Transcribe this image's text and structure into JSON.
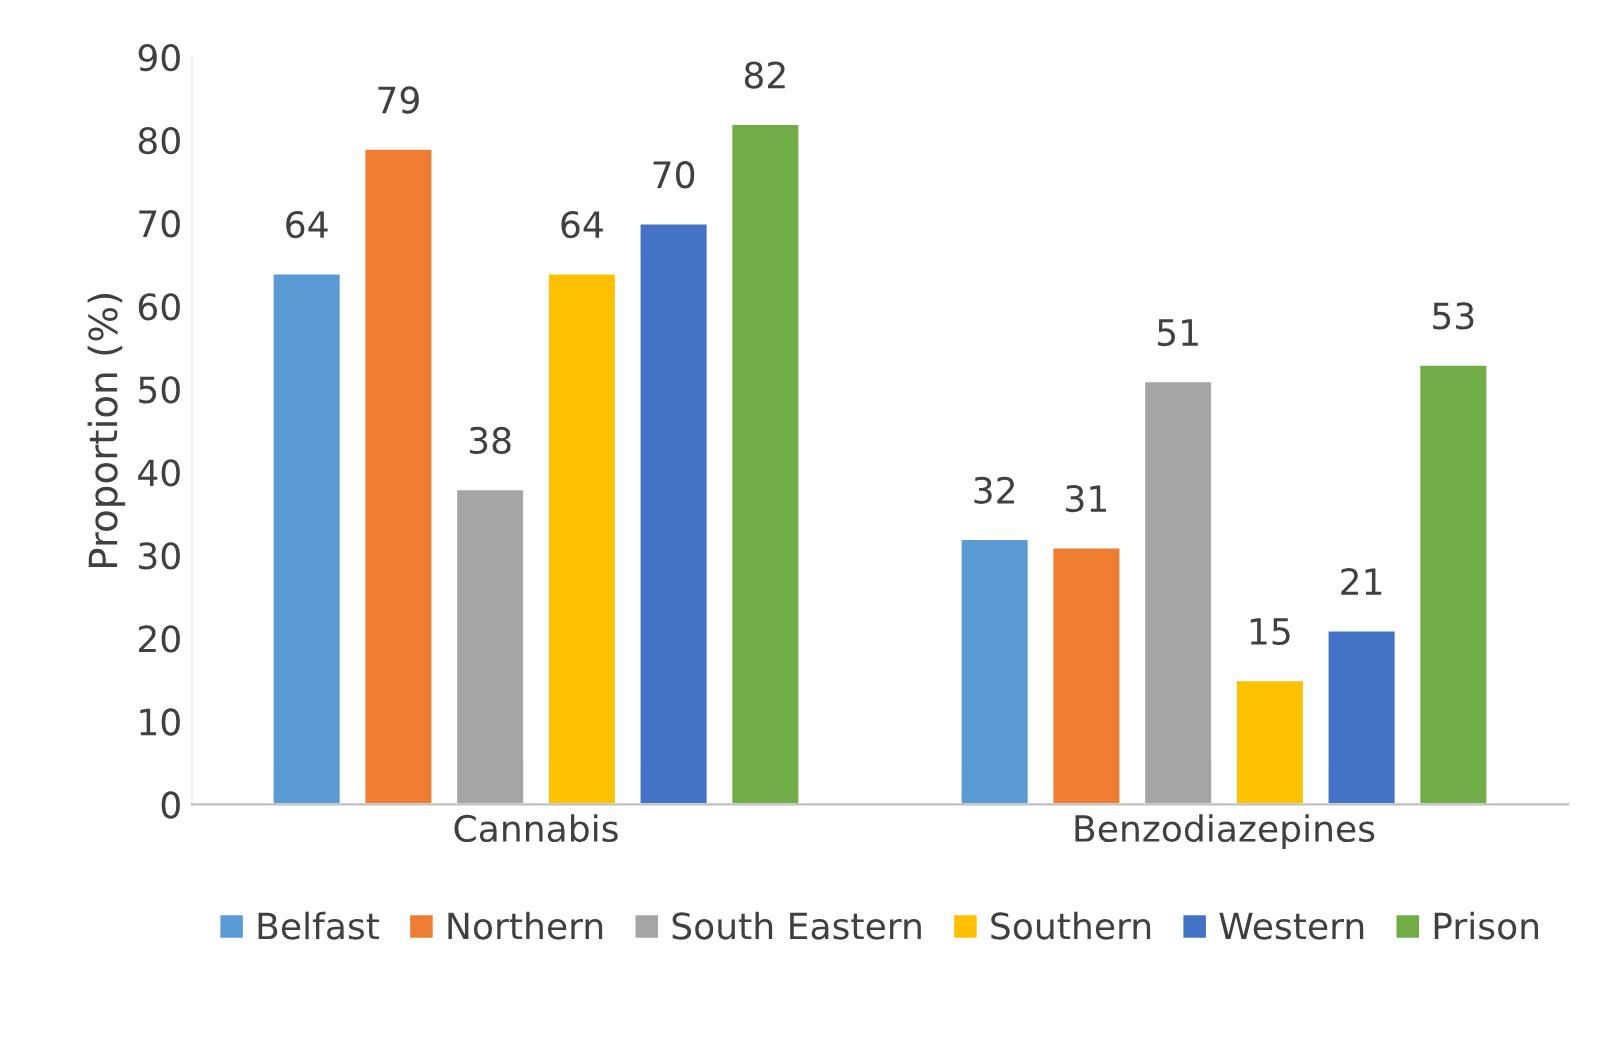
{
  "chart_data": {
    "type": "bar",
    "ylabel": "Proportion (%)",
    "categories": [
      "Cannabis",
      "Benzodiazepines"
    ],
    "series": [
      {
        "name": "Belfast",
        "color": "#5b9bd5",
        "values": [
          64,
          32
        ]
      },
      {
        "name": "Northern",
        "color": "#ed7d31",
        "values": [
          79,
          31
        ]
      },
      {
        "name": "South Eastern",
        "color": "#a5a5a5",
        "values": [
          38,
          51
        ]
      },
      {
        "name": "Southern",
        "color": "#ffc000",
        "values": [
          64,
          15
        ]
      },
      {
        "name": "Western",
        "color": "#4472c4",
        "values": [
          70,
          21
        ]
      },
      {
        "name": "Prison",
        "color": "#70ad47",
        "values": [
          82,
          53
        ]
      }
    ],
    "ylim": [
      0,
      90
    ],
    "yticks": [
      0,
      10,
      20,
      30,
      40,
      50,
      60,
      70,
      80,
      90
    ],
    "data_labels": true,
    "legend": "bottom",
    "grid": false
  }
}
